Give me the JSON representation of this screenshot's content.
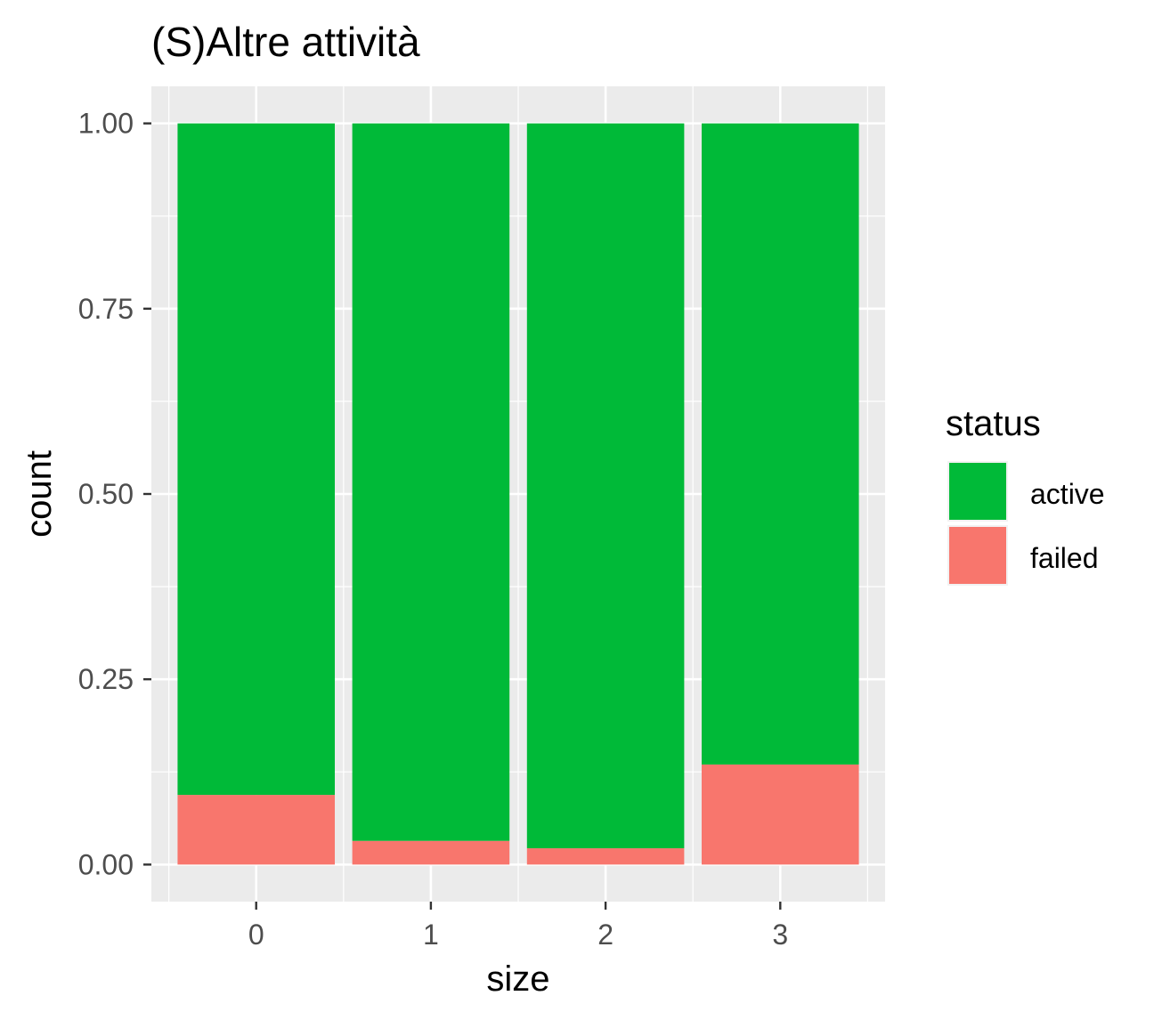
{
  "chart_data": {
    "type": "bar",
    "stacked": true,
    "title": "(S)Altre attività",
    "xlabel": "size",
    "ylabel": "count",
    "categories": [
      "0",
      "1",
      "2",
      "3"
    ],
    "ylim": [
      -0.05,
      1.05
    ],
    "yticks": [
      0.0,
      0.25,
      0.5,
      0.75,
      1.0
    ],
    "ytick_labels": [
      "0.00",
      "0.25",
      "0.50",
      "0.75",
      "1.00"
    ],
    "series": [
      {
        "name": "failed",
        "color": "#F8766D",
        "values": [
          0.094,
          0.032,
          0.022,
          0.135
        ]
      },
      {
        "name": "active",
        "color": "#00BA38",
        "values": [
          0.906,
          0.968,
          0.978,
          0.865
        ]
      }
    ],
    "legend": {
      "title": "status",
      "position": "right",
      "entries": [
        {
          "label": "active",
          "color": "#00BA38"
        },
        {
          "label": "failed",
          "color": "#F8766D"
        }
      ]
    },
    "panel_background": "#EBEBEB",
    "grid_color": "#FFFFFF",
    "grid": true
  }
}
